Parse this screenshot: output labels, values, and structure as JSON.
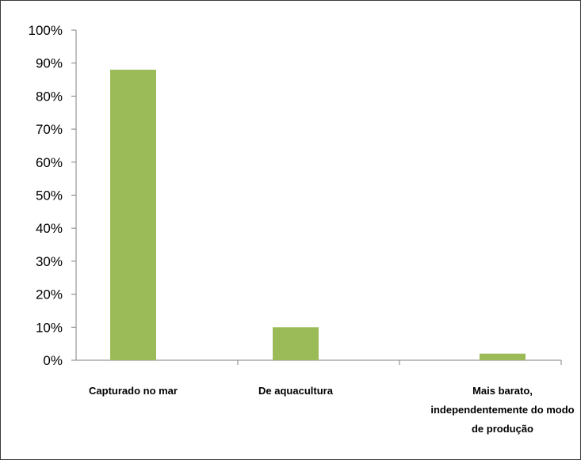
{
  "chart_data": {
    "type": "bar",
    "title": "",
    "xlabel": "",
    "ylabel": "",
    "categories": [
      [
        "Capturado no mar"
      ],
      [
        "De aquacultura"
      ],
      [
        "Mais barato,",
        "independentemente do modo",
        "de produção"
      ]
    ],
    "values": [
      88,
      10,
      2
    ],
    "ylim": [
      0,
      100
    ],
    "y_ticks": [
      "0%",
      "10%",
      "20%",
      "30%",
      "40%",
      "50%",
      "60%",
      "70%",
      "80%",
      "90%",
      "100%"
    ],
    "bar_color": "#9bbb59",
    "grid": false,
    "legend": "none"
  }
}
